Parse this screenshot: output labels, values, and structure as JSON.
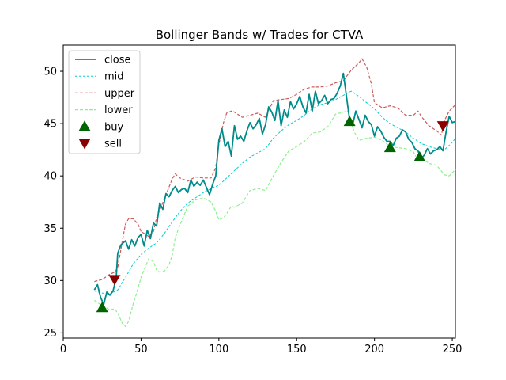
{
  "chart_data": {
    "type": "line",
    "title": "Bollinger Bands w/ Trades for CTVA",
    "xlabel": "",
    "ylabel": "",
    "xlim": [
      0,
      252
    ],
    "ylim": [
      24.5,
      52.5
    ],
    "xticks": [
      0,
      50,
      100,
      150,
      200,
      250
    ],
    "yticks": [
      25,
      30,
      35,
      40,
      45,
      50
    ],
    "grid": false,
    "legend_position": "top-left",
    "legend": [
      "close",
      "mid",
      "upper",
      "lower",
      "buy",
      "sell"
    ],
    "colors": {
      "close": "#008b8b",
      "mid": "#00ced1",
      "upper": "#cd5c5c",
      "lower": "#90ee90",
      "buy": "#006400",
      "sell": "#8b0000"
    },
    "series": [
      {
        "name": "close",
        "style": "solid",
        "x": [
          20,
          22,
          24,
          26,
          28,
          30,
          32,
          34,
          35,
          37,
          40,
          42,
          44,
          46,
          48,
          50,
          52,
          54,
          56,
          58,
          60,
          62,
          64,
          66,
          68,
          70,
          72,
          74,
          76,
          78,
          80,
          82,
          84,
          86,
          88,
          90,
          92,
          94,
          96,
          98,
          100,
          102,
          104,
          106,
          108,
          110,
          112,
          114,
          116,
          118,
          120,
          122,
          124,
          126,
          128,
          130,
          132,
          134,
          136,
          138,
          140,
          142,
          144,
          146,
          148,
          150,
          152,
          154,
          156,
          158,
          160,
          162,
          164,
          166,
          168,
          170,
          172,
          174,
          176,
          178,
          180,
          182,
          184,
          186,
          188,
          190,
          192,
          194,
          196,
          198,
          200,
          202,
          204,
          206,
          208,
          210,
          212,
          214,
          216,
          218,
          220,
          222,
          224,
          226,
          228,
          230,
          232,
          234,
          236,
          238,
          240,
          242,
          244,
          246,
          248,
          250,
          252
        ],
        "y": [
          29.1,
          29.6,
          28.4,
          27.7,
          28.9,
          28.6,
          29.0,
          30.2,
          32.6,
          33.4,
          33.8,
          33.0,
          33.9,
          33.3,
          34.1,
          34.4,
          33.3,
          34.8,
          34.0,
          35.5,
          35.2,
          37.4,
          36.8,
          38.3,
          38.0,
          38.6,
          39.0,
          38.4,
          38.7,
          38.8,
          38.4,
          39.6,
          39.0,
          39.4,
          39.1,
          39.6,
          38.9,
          38.2,
          39.2,
          40.0,
          43.4,
          44.5,
          42.8,
          43.3,
          41.9,
          44.8,
          43.5,
          43.8,
          43.3,
          44.3,
          45.1,
          44.5,
          44.9,
          45.5,
          44.0,
          44.9,
          46.6,
          46.1,
          45.3,
          47.2,
          44.8,
          46.3,
          45.6,
          47.1,
          46.4,
          46.9,
          47.6,
          46.6,
          46.0,
          47.8,
          46.2,
          48.1,
          46.9,
          47.2,
          47.7,
          46.9,
          47.3,
          47.4,
          47.9,
          48.6,
          49.8,
          47.6,
          45.4,
          44.9,
          46.2,
          45.4,
          44.6,
          45.8,
          45.2,
          44.9,
          43.8,
          44.7,
          44.3,
          43.7,
          43.3,
          43.3,
          42.9,
          43.6,
          43.8,
          44.4,
          44.2,
          43.5,
          43.2,
          42.6,
          42.4,
          41.6,
          42.0,
          42.6,
          42.1,
          42.4,
          42.5,
          42.8,
          42.4,
          44.2,
          45.7,
          45.1,
          45.2
        ]
      },
      {
        "name": "mid",
        "style": "dashed",
        "x": [
          20,
          25,
          30,
          35,
          40,
          45,
          50,
          55,
          60,
          65,
          70,
          75,
          80,
          85,
          90,
          95,
          100,
          105,
          110,
          115,
          120,
          125,
          130,
          135,
          140,
          145,
          150,
          155,
          160,
          165,
          170,
          175,
          180,
          185,
          190,
          195,
          200,
          205,
          210,
          215,
          220,
          225,
          230,
          235,
          240,
          245,
          250,
          252
        ],
        "y": [
          29.0,
          28.8,
          28.7,
          29.1,
          30.3,
          31.6,
          32.5,
          33.1,
          33.6,
          34.5,
          35.6,
          36.6,
          37.4,
          37.9,
          38.4,
          38.8,
          39.1,
          39.8,
          40.5,
          41.2,
          41.8,
          42.2,
          42.6,
          43.6,
          44.3,
          44.9,
          45.3,
          45.8,
          46.4,
          46.8,
          47.0,
          47.3,
          47.7,
          48.1,
          47.6,
          47.0,
          46.4,
          45.6,
          45.0,
          44.6,
          44.2,
          43.6,
          43.1,
          42.8,
          42.6,
          42.5,
          43.2,
          43.6
        ]
      },
      {
        "name": "upper",
        "style": "dashed",
        "x": [
          20,
          25,
          30,
          33,
          35,
          38,
          40,
          42,
          45,
          48,
          50,
          55,
          58,
          60,
          65,
          70,
          72,
          75,
          80,
          85,
          90,
          95,
          98,
          100,
          103,
          105,
          108,
          110,
          115,
          120,
          125,
          130,
          135,
          140,
          145,
          150,
          155,
          160,
          165,
          170,
          175,
          180,
          185,
          190,
          192,
          195,
          198,
          200,
          205,
          210,
          215,
          220,
          225,
          228,
          230,
          235,
          240,
          243,
          245,
          248,
          252
        ],
        "y": [
          29.9,
          30.1,
          30.6,
          30.8,
          31.2,
          33.8,
          35.4,
          35.9,
          35.9,
          35.4,
          34.7,
          34.2,
          34.7,
          36.0,
          37.8,
          39.7,
          40.2,
          39.8,
          39.5,
          39.9,
          39.8,
          39.8,
          40.8,
          43.0,
          45.1,
          46.0,
          46.2,
          46.1,
          45.6,
          45.8,
          46.0,
          45.6,
          47.2,
          47.3,
          47.4,
          47.8,
          48.3,
          48.5,
          48.5,
          48.6,
          48.9,
          49.1,
          50.1,
          50.8,
          51.2,
          50.4,
          48.8,
          47.0,
          46.5,
          46.7,
          46.5,
          45.8,
          45.8,
          46.2,
          45.7,
          44.8,
          44.3,
          43.9,
          45.3,
          46.2,
          46.8
        ]
      },
      {
        "name": "lower",
        "style": "dashed",
        "x": [
          20,
          25,
          30,
          33,
          35,
          38,
          40,
          42,
          45,
          48,
          50,
          55,
          58,
          60,
          62,
          65,
          68,
          70,
          72,
          75,
          80,
          85,
          90,
          95,
          98,
          100,
          103,
          105,
          108,
          110,
          115,
          120,
          125,
          130,
          135,
          140,
          145,
          150,
          155,
          160,
          165,
          170,
          175,
          180,
          183,
          185,
          187,
          190,
          195,
          200,
          205,
          210,
          215,
          220,
          225,
          228,
          230,
          235,
          240,
          245,
          248,
          250,
          252
        ],
        "y": [
          28.1,
          27.6,
          27.2,
          27.3,
          26.9,
          25.9,
          25.6,
          26.1,
          27.8,
          29.2,
          30.3,
          32.1,
          31.8,
          31.0,
          30.8,
          30.9,
          31.5,
          32.4,
          34.1,
          35.3,
          37.1,
          37.7,
          37.9,
          37.5,
          36.6,
          35.8,
          36.0,
          36.4,
          37.1,
          37.0,
          37.4,
          38.6,
          38.8,
          38.6,
          40.0,
          41.3,
          42.4,
          42.8,
          43.3,
          44.1,
          44.2,
          44.7,
          45.9,
          46.1,
          46.2,
          45.1,
          44.2,
          43.4,
          43.6,
          43.7,
          43.4,
          42.8,
          42.7,
          42.6,
          42.3,
          41.5,
          41.7,
          41.2,
          41.0,
          40.1,
          40.0,
          40.3,
          40.6
        ]
      },
      {
        "name": "buy",
        "style": "marker",
        "marker": "triangle-up",
        "x": [
          25,
          184,
          210,
          229
        ],
        "y": [
          27.4,
          45.2,
          42.7,
          41.8
        ]
      },
      {
        "name": "sell",
        "style": "marker",
        "marker": "triangle-down",
        "x": [
          33,
          244
        ],
        "y": [
          30.1,
          44.8
        ]
      }
    ]
  }
}
